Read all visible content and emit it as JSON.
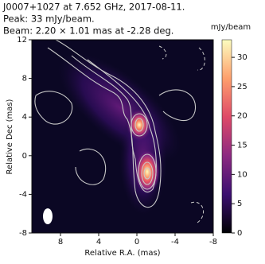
{
  "chart_data": {
    "type": "image",
    "title": [
      "J0007+1027 at 7.652 GHz, 2017-08-11.",
      "Peak: 33 mJy/beam.",
      "Beam: 2.20 × 1.01 mas at -2.28 deg."
    ],
    "xlabel": "Relative R.A. (mas)",
    "ylabel": "Relative Dec (mas)",
    "xlim": [
      11,
      -8
    ],
    "xticks": [
      8,
      4,
      0,
      -4,
      -8
    ],
    "ylim": [
      -8,
      12
    ],
    "yticks": [
      -8,
      -4,
      0,
      4,
      8,
      12
    ],
    "colorbar": {
      "label": "mJy/beam",
      "colormap": "magma",
      "clim": [
        0,
        33
      ],
      "ticks": [
        0,
        5,
        10,
        15,
        20,
        25,
        30
      ]
    }
  }
}
